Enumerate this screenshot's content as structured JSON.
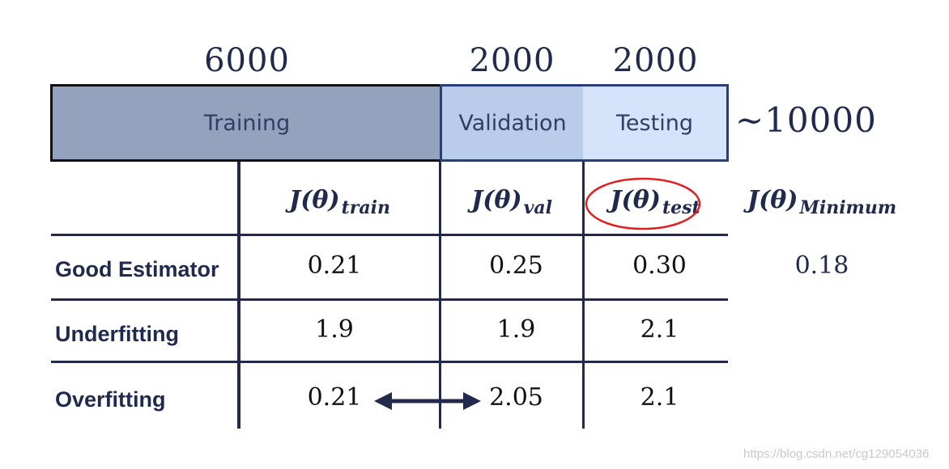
{
  "counts": {
    "training": "6000",
    "validation": "2000",
    "testing": "2000",
    "total": "~10000"
  },
  "bar": {
    "training": "Training",
    "validation": "Validation",
    "testing": "Testing"
  },
  "headers": {
    "train": {
      "main": "J(θ)",
      "sub": "train"
    },
    "val": {
      "main": "J(θ)",
      "sub": "val"
    },
    "test": {
      "main": "J(θ)",
      "sub": "test"
    },
    "minimum": {
      "main": "J(θ)",
      "sub": "Minimum"
    }
  },
  "rows": [
    {
      "label": "Good Estimator",
      "train": "0.21",
      "val": "0.25",
      "test": "0.30",
      "minimum": "0.18"
    },
    {
      "label": "Underfitting",
      "train": "1.9",
      "val": "1.9",
      "test": "2.1"
    },
    {
      "label": "Overfitting",
      "train": "0.21",
      "val": "2.05",
      "test": "2.1"
    }
  ],
  "colors": {
    "training": "#94a3bd",
    "validation": "#b9cdea",
    "testing": "#d6e4fb",
    "highlight": "#e02020",
    "ink": "#23294a"
  },
  "watermark": "https://blog.csdn.net/cg129054036"
}
